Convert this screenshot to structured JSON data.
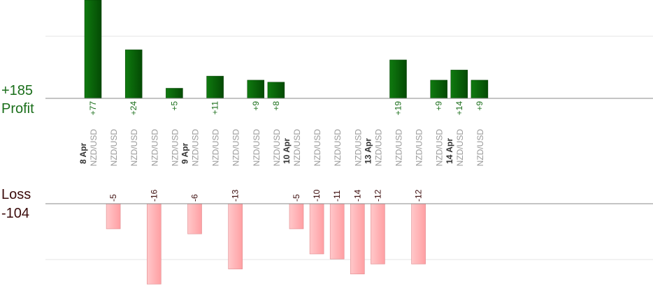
{
  "summary": {
    "profit_total": "+185",
    "profit_label": "Profit",
    "loss_label": "Loss",
    "loss_total": "-104"
  },
  "colors": {
    "profit_bar": "#0a6a0a",
    "loss_bar": "#ffb6b8",
    "profit_text": "#1a6e1a",
    "loss_text": "#3a0a0a",
    "date_text": "#333333",
    "pair_text": "#999999",
    "axis": "#8a8a8a",
    "grid": "#e6e6e6"
  },
  "chart_data": {
    "type": "bar",
    "layout": "profit bars above upper axis, loss bars below lower axis, one column per trade",
    "grid": true,
    "groups": [
      {
        "date": "8 Apr",
        "trades": [
          {
            "pair": "NZD/USD",
            "value": 77,
            "label": "+77"
          },
          {
            "pair": "NZD/USD",
            "value": -5,
            "label": "-5"
          },
          {
            "pair": "NZD/USD",
            "value": 24,
            "label": "+24"
          },
          {
            "pair": "NZD/USD",
            "value": -16,
            "label": "-16"
          },
          {
            "pair": "NZD/USD",
            "value": 5,
            "label": "+5"
          }
        ]
      },
      {
        "date": "9 Apr",
        "trades": [
          {
            "pair": "NZD/USD",
            "value": -6,
            "label": "-6"
          },
          {
            "pair": "NZD/USD",
            "value": 11,
            "label": "+11"
          },
          {
            "pair": "NZD/USD",
            "value": -13,
            "label": "-13"
          },
          {
            "pair": "NZD/USD",
            "value": 9,
            "label": "+9"
          },
          {
            "pair": "NZD/USD",
            "value": 8,
            "label": "+8"
          }
        ]
      },
      {
        "date": "10 Apr",
        "trades": [
          {
            "pair": "NZD/USD",
            "value": -5,
            "label": "-5"
          },
          {
            "pair": "NZD/USD",
            "value": -10,
            "label": "-10"
          },
          {
            "pair": "NZD/USD",
            "value": -11,
            "label": "-11"
          },
          {
            "pair": "NZD/USD",
            "value": -14,
            "label": "-14"
          }
        ]
      },
      {
        "date": "13 Apr",
        "trades": [
          {
            "pair": "NZD/USD",
            "value": -12,
            "label": "-12"
          },
          {
            "pair": "NZD/USD",
            "value": 19,
            "label": "+19"
          },
          {
            "pair": "NZD/USD",
            "value": -12,
            "label": "-12"
          },
          {
            "pair": "NZD/USD",
            "value": 9,
            "label": "+9"
          }
        ]
      },
      {
        "date": "14 Apr",
        "trades": [
          {
            "pair": "NZD/USD",
            "value": 14,
            "label": "+14"
          },
          {
            "pair": "NZD/USD",
            "value": 9,
            "label": "+9"
          }
        ]
      }
    ]
  }
}
